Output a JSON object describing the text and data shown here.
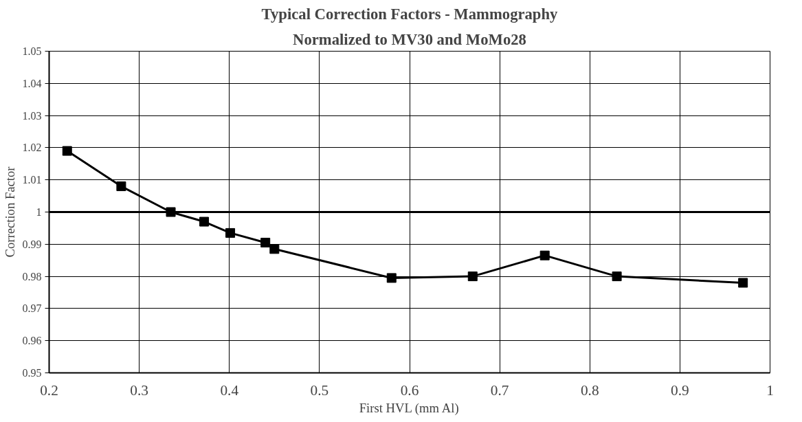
{
  "chart_data": {
    "type": "line",
    "title": "Typical Correction Factors - Mammography",
    "subtitle": "Normalized to MV30 and MoMo28",
    "xlabel": "First HVL (mm Al)",
    "ylabel": "Correction Factor",
    "x": [
      0.22,
      0.28,
      0.335,
      0.372,
      0.401,
      0.44,
      0.45,
      0.58,
      0.67,
      0.75,
      0.83,
      0.97
    ],
    "series": [
      {
        "color": "#000000",
        "values": [
          1.019,
          1.008,
          1.0,
          0.997,
          0.9935,
          0.9905,
          0.9885,
          0.9795,
          0.98,
          0.9865,
          0.98,
          0.978
        ]
      }
    ],
    "xlim": [
      0.2,
      1
    ],
    "xticks": [
      0.2,
      0.3,
      0.4,
      0.5,
      0.6,
      0.7,
      0.8,
      0.9,
      1
    ],
    "ylim": [
      0.95,
      1.05
    ],
    "yticks": [
      0.95,
      0.96,
      0.97,
      0.98,
      0.99,
      1,
      1.01,
      1.02,
      1.03,
      1.04,
      1.05
    ],
    "ref_lines": [
      {
        "axis": "y",
        "value": 1,
        "color": "#000000"
      }
    ],
    "grid": true,
    "marker": "square",
    "line_style": "solid"
  }
}
